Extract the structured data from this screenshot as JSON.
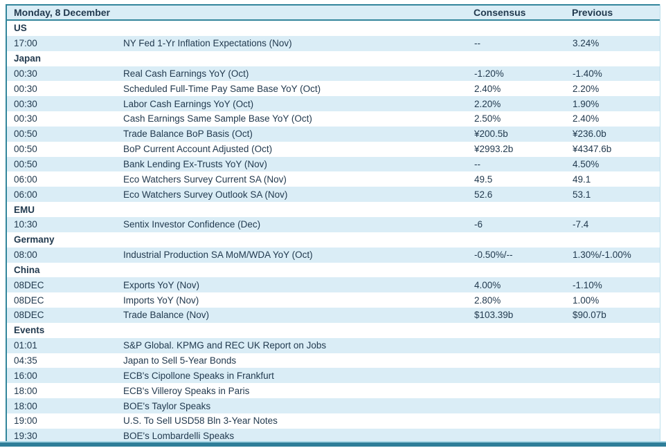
{
  "header": {
    "date_label": "Monday, 8 December",
    "consensus_label": "Consensus",
    "previous_label": "Previous"
  },
  "colors": {
    "row_highlight": "#DAEDF6",
    "border_teal": "#31859B",
    "bottom_bar": "#2F7E99",
    "text": "#223A4F"
  },
  "table": {
    "rows": [
      {
        "type": "section",
        "label": "US"
      },
      {
        "type": "data",
        "time": "17:00",
        "event": "NY Fed 1-Yr Inflation Expectations (Nov)",
        "consensus": "--",
        "previous": "3.24%"
      },
      {
        "type": "section",
        "label": "Japan"
      },
      {
        "type": "data",
        "time": "00:30",
        "event": "Real Cash Earnings YoY (Oct)",
        "consensus": "-1.20%",
        "previous": "-1.40%"
      },
      {
        "type": "data",
        "time": "00:30",
        "event": "Scheduled Full-Time Pay Same Base YoY (Oct)",
        "consensus": "2.40%",
        "previous": "2.20%"
      },
      {
        "type": "data",
        "time": "00:30",
        "event": "Labor Cash Earnings YoY (Oct)",
        "consensus": "2.20%",
        "previous": "1.90%"
      },
      {
        "type": "data",
        "time": "00:30",
        "event": "Cash Earnings Same Sample Base YoY (Oct)",
        "consensus": "2.50%",
        "previous": "2.40%"
      },
      {
        "type": "data",
        "time": "00:50",
        "event": "Trade Balance BoP Basis (Oct)",
        "consensus": "¥200.5b",
        "previous": "¥236.0b"
      },
      {
        "type": "data",
        "time": "00:50",
        "event": "BoP Current Account Adjusted (Oct)",
        "consensus": "¥2993.2b",
        "previous": "¥4347.6b"
      },
      {
        "type": "data",
        "time": "00:50",
        "event": "Bank Lending Ex-Trusts YoY (Nov)",
        "consensus": "--",
        "previous": "4.50%"
      },
      {
        "type": "data",
        "time": "06:00",
        "event": "Eco Watchers Survey Current SA (Nov)",
        "consensus": "49.5",
        "previous": "49.1"
      },
      {
        "type": "data",
        "time": "06:00",
        "event": "Eco Watchers Survey Outlook SA (Nov)",
        "consensus": "52.6",
        "previous": "53.1"
      },
      {
        "type": "section",
        "label": "EMU"
      },
      {
        "type": "data",
        "time": "10:30",
        "event": "Sentix Investor Confidence (Dec)",
        "consensus": "-6",
        "previous": "-7.4"
      },
      {
        "type": "section",
        "label": "Germany"
      },
      {
        "type": "data",
        "time": "08:00",
        "event": "Industrial Production SA MoM/WDA YoY (Oct)",
        "consensus": "-0.50%/--",
        "previous": "1.30%/-1.00%"
      },
      {
        "type": "section",
        "label": "China"
      },
      {
        "type": "data",
        "time": "08DEC",
        "event": "Exports YoY (Nov)",
        "consensus": "4.00%",
        "previous": "-1.10%"
      },
      {
        "type": "data",
        "time": "08DEC",
        "event": "Imports YoY (Nov)",
        "consensus": "2.80%",
        "previous": "1.00%"
      },
      {
        "type": "data",
        "time": "08DEC",
        "event": "Trade Balance (Nov)",
        "consensus": "$103.39b",
        "previous": "$90.07b"
      },
      {
        "type": "section",
        "label": "Events"
      },
      {
        "type": "data",
        "time": "01:01",
        "event": "S&P Global. KPMG and REC UK Report on Jobs",
        "consensus": "",
        "previous": ""
      },
      {
        "type": "data",
        "time": "04:35",
        "event": "Japan to Sell 5-Year Bonds",
        "consensus": "",
        "previous": ""
      },
      {
        "type": "data",
        "time": "16:00",
        "event": "ECB's Cipollone Speaks in Frankfurt",
        "consensus": "",
        "previous": ""
      },
      {
        "type": "data",
        "time": "18:00",
        "event": "ECB's Villeroy Speaks in Paris",
        "consensus": "",
        "previous": ""
      },
      {
        "type": "data",
        "time": "18:00",
        "event": "BOE's Taylor Speaks",
        "consensus": "",
        "previous": ""
      },
      {
        "type": "data",
        "time": "19:00",
        "event": "U.S. To Sell USD58 Bln 3-Year Notes",
        "consensus": "",
        "previous": ""
      },
      {
        "type": "data",
        "time": "19:30",
        "event": "BOE's Lombardelli Speaks",
        "consensus": "",
        "previous": ""
      }
    ]
  }
}
